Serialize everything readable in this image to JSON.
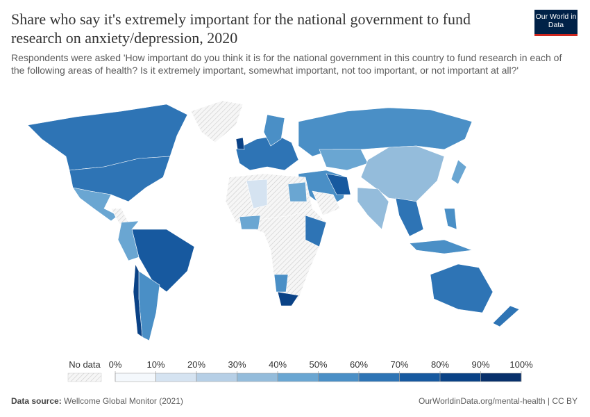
{
  "header": {
    "title": "Share who say it's extremely important for the national government to fund research on anxiety/depression, 2020",
    "subtitle": "Respondents were asked 'How important do you think it is for the national government in this country to fund research in each of the following areas of health? Is it extremely important, somewhat important, not too important, or not important at all?'",
    "logo": "Our World in Data"
  },
  "legend": {
    "no_data": "No data",
    "ticks": [
      {
        "value": 0,
        "label": "0%"
      },
      {
        "value": 10,
        "label": "10%"
      },
      {
        "value": 20,
        "label": "20%"
      },
      {
        "value": 30,
        "label": "30%"
      },
      {
        "value": 40,
        "label": "40%"
      },
      {
        "value": 50,
        "label": "50%"
      },
      {
        "value": 60,
        "label": "60%"
      },
      {
        "value": 70,
        "label": "70%"
      },
      {
        "value": 80,
        "label": "80%"
      },
      {
        "value": 90,
        "label": "90%"
      },
      {
        "value": 100,
        "label": "100%"
      }
    ],
    "colors": [
      "#f4f8fc",
      "#d5e3f1",
      "#b6cfe6",
      "#94bcdb",
      "#6aa6d2",
      "#4a8fc6",
      "#2e74b5",
      "#17599f",
      "#0a4286",
      "#08306b"
    ]
  },
  "footer": {
    "source_label": "Data source:",
    "source": "Wellcome Global Monitor (2021)",
    "url": "OurWorldinData.org/mental-health | CC BY"
  }
}
